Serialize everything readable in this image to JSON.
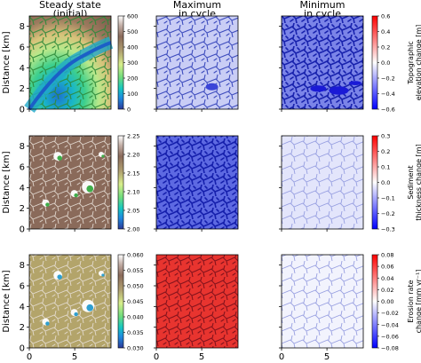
{
  "columns": [
    {
      "title_line1": "Steady state",
      "title_line2": "(initial)"
    },
    {
      "title_line1": "Maximum",
      "title_line2": "in cycle"
    },
    {
      "title_line1": "Minimum",
      "title_line2": "in cycle"
    }
  ],
  "axes": {
    "ylabel": "Distance [km]",
    "xlabel": "Distance [km]",
    "xticks": [
      "0",
      "5"
    ],
    "yticks": [
      "0",
      "2",
      "4",
      "6",
      "8"
    ]
  },
  "chart_data": [
    {
      "type": "heatmap",
      "row": 0,
      "col": 0,
      "title": "Steady state (initial)",
      "xlabel": "",
      "ylabel": "Distance [km]",
      "colormap": "terrain",
      "xlim": [
        0,
        9
      ],
      "ylim": [
        0,
        9
      ],
      "cbar_ticks": [
        "0",
        "100",
        "200",
        "300",
        "400",
        "500",
        "600"
      ],
      "cbar_range": [
        0,
        600
      ],
      "cbar_label": ""
    },
    {
      "type": "heatmap",
      "row": 0,
      "col": 1,
      "title": "Maximum in cycle",
      "colormap": "bwr",
      "xlim": [
        0,
        9
      ],
      "ylim": [
        0,
        9
      ]
    },
    {
      "type": "heatmap",
      "row": 0,
      "col": 2,
      "title": "Minimum in cycle",
      "colormap": "bwr",
      "xlim": [
        0,
        9
      ],
      "ylim": [
        0,
        9
      ],
      "cbar_ticks": [
        "0.6",
        "0.4",
        "0.2",
        "0.0",
        "−0.2",
        "−0.4",
        "−0.6"
      ],
      "cbar_range": [
        -0.6,
        0.6
      ],
      "cbar_label_line1": "Topographic",
      "cbar_label_line2": "elevation change [m]"
    },
    {
      "type": "heatmap",
      "row": 1,
      "col": 0,
      "colormap": "terrain",
      "ylabel": "Distance [km]",
      "xlim": [
        0,
        9
      ],
      "ylim": [
        0,
        9
      ],
      "cbar_ticks": [
        "2.25",
        "2.20",
        "2.15",
        "2.10",
        "2.05",
        "2.00"
      ],
      "cbar_range": [
        2.0,
        2.25
      ]
    },
    {
      "type": "heatmap",
      "row": 1,
      "col": 1,
      "colormap": "bwr",
      "xlim": [
        0,
        9
      ],
      "ylim": [
        0,
        9
      ]
    },
    {
      "type": "heatmap",
      "row": 1,
      "col": 2,
      "colormap": "bwr",
      "xlim": [
        0,
        9
      ],
      "ylim": [
        0,
        9
      ],
      "cbar_ticks": [
        "0.3",
        "0.2",
        "0.1",
        "0.0",
        "−0.1",
        "−0.2",
        "−0.3"
      ],
      "cbar_range": [
        -0.3,
        0.3
      ],
      "cbar_label_line1": "Sediment",
      "cbar_label_line2": "thickness change [m]"
    },
    {
      "type": "heatmap",
      "row": 2,
      "col": 0,
      "colormap": "terrain",
      "ylabel": "Distance [km]",
      "xlabel": "Distance [km]",
      "xlim": [
        0,
        9
      ],
      "ylim": [
        0,
        9
      ],
      "cbar_ticks": [
        "0.060",
        "0.055",
        "0.050",
        "0.045",
        "0.040",
        "0.035",
        "0.030"
      ],
      "cbar_range": [
        0.03,
        0.06
      ]
    },
    {
      "type": "heatmap",
      "row": 2,
      "col": 1,
      "colormap": "bwr",
      "xlabel": "Distance [km]",
      "xlim": [
        0,
        9
      ],
      "ylim": [
        0,
        9
      ]
    },
    {
      "type": "heatmap",
      "row": 2,
      "col": 2,
      "colormap": "bwr",
      "xlabel": "Distance [km]",
      "xlim": [
        0,
        9
      ],
      "ylim": [
        0,
        9
      ],
      "cbar_ticks": [
        "0.08",
        "0.06",
        "0.04",
        "0.02",
        "0.00",
        "−0.02",
        "−0.04",
        "−0.06",
        "−0.08"
      ],
      "cbar_range": [
        -0.08,
        0.08
      ],
      "cbar_label_line1": "Erosion rate",
      "cbar_label_line2": "change [mm yr⁻¹]"
    }
  ]
}
